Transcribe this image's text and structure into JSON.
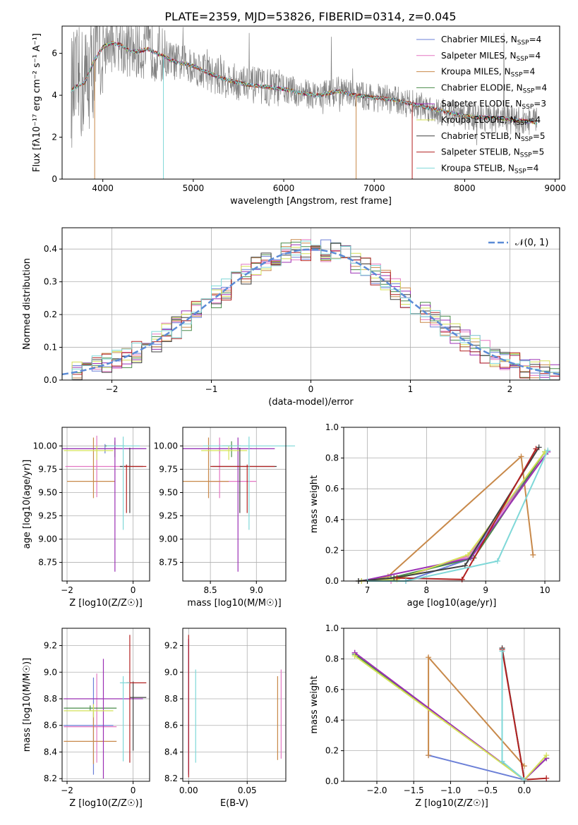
{
  "figure": {
    "title": "PLATE=2359, MJD=53826, FIBERID=0314, z=0.045"
  },
  "colors": {
    "Chabrier MILES": "#6b7fd7",
    "Salpeter MILES": "#e377c2",
    "Kroupa MILES": "#c8894a",
    "Chabrier ELODIE": "#4a8c4a",
    "Salpeter ELODIE": "#9b30b5",
    "Kroupa ELODIE": "#d4e157",
    "Chabrier STELIB": "#404040",
    "Salpeter STELIB": "#b22222",
    "Kroupa STELIB": "#7fd8d8",
    "data": "#808080",
    "normal": "#5b8bd6"
  },
  "chart_data": [
    {
      "id": "spectrum",
      "type": "line",
      "title": "PLATE=2359, MJD=53826, FIBERID=0314, z=0.045",
      "xlabel": "wavelength [Angstrom, rest frame]",
      "ylabel": "Flux [fλ10⁻¹⁷ erg cm⁻² s⁻¹ A⁻¹]",
      "xlim": [
        3550,
        9050
      ],
      "ylim": [
        0,
        7.3
      ],
      "xticks": [
        4000,
        5000,
        6000,
        7000,
        8000,
        9000
      ],
      "yticks": [
        0,
        2,
        4,
        6
      ],
      "legend_position": "top-right",
      "legend": [
        {
          "name": "Chabrier MILES",
          "suffix": "=4"
        },
        {
          "name": "Salpeter MILES",
          "suffix": "=4"
        },
        {
          "name": "Kroupa MILES",
          "suffix": "=4"
        },
        {
          "name": "Chabrier ELODIE",
          "suffix": "=4"
        },
        {
          "name": "Salpeter ELODIE",
          "suffix": "=3"
        },
        {
          "name": "Kroupa ELODIE",
          "suffix": "=4"
        },
        {
          "name": "Chabrier STELIB",
          "suffix": "=5"
        },
        {
          "name": "Salpeter STELIB",
          "suffix": "=5"
        },
        {
          "name": "Kroupa STELIB",
          "suffix": "=4"
        }
      ],
      "model_continuum": {
        "x": [
          3650,
          3700,
          3800,
          3900,
          4000,
          4100,
          4200,
          4300,
          4400,
          4500,
          4600,
          4700,
          4800,
          4900,
          5000,
          5200,
          5400,
          5600,
          5800,
          6000,
          6200,
          6400,
          6600,
          6800,
          7000,
          7200,
          7400,
          7600,
          7800,
          8000,
          8200,
          8400,
          8600,
          8800
        ],
        "y": [
          4.2,
          4.4,
          4.6,
          5.6,
          6.3,
          6.5,
          6.4,
          6.1,
          6.1,
          6.2,
          6.0,
          5.8,
          5.6,
          5.5,
          5.4,
          5.0,
          4.7,
          4.5,
          4.4,
          4.3,
          4.1,
          4.0,
          4.2,
          4.0,
          3.9,
          3.8,
          3.6,
          3.4,
          3.2,
          3.0,
          2.95,
          2.9,
          2.8,
          2.7
        ]
      }
    },
    {
      "id": "residuals",
      "type": "line",
      "xlabel": "(data-model)/error",
      "ylabel": "Normed distribution",
      "xlim": [
        -2.5,
        2.5
      ],
      "ylim": [
        0,
        0.465
      ],
      "xticks": [
        -2,
        -1,
        0,
        1,
        2
      ],
      "yticks": [
        0.0,
        0.1,
        0.2,
        0.3,
        0.4
      ],
      "grid": true,
      "legend_position": "top-right",
      "legend": [
        "𝒩(0, 1)"
      ],
      "normal_curve": {
        "mean": 0,
        "sd": 1
      }
    },
    {
      "id": "age_vs_Z",
      "type": "scatter",
      "xlabel": "Z [log10(Z/Z☉)]",
      "ylabel": "age  [log10(age/yr)]",
      "xlim": [
        -2.15,
        0.5
      ],
      "ylim": [
        8.55,
        10.2
      ],
      "xticks": [
        -2,
        0
      ],
      "yticks": [
        8.75,
        9.0,
        9.25,
        9.5,
        9.75,
        10.0
      ],
      "grid": true,
      "errorbars": [
        {
          "series": "Chabrier MILES",
          "x": -0.85,
          "xerr": [
            1.25,
            1.25
          ],
          "y": 9.97,
          "yerr": [
            0.05,
            0.05
          ]
        },
        {
          "series": "Salpeter MILES",
          "x": -1.1,
          "xerr": [
            0.95,
            0.95
          ],
          "y": 9.78,
          "yerr": [
            0.33,
            0.33
          ]
        },
        {
          "series": "Kroupa MILES",
          "x": -1.2,
          "xerr": [
            0.8,
            0.65
          ],
          "y": 9.62,
          "yerr": [
            0.18,
            0.47
          ]
        },
        {
          "series": "Chabrier ELODIE",
          "x": -0.55,
          "xerr": [
            0.3,
            0.3
          ],
          "y": 10.0,
          "yerr": [
            0.12,
            0.05
          ]
        },
        {
          "series": "Salpeter ELODIE",
          "x": -0.55,
          "xerr": [
            1.6,
            0.95
          ],
          "y": 9.97,
          "yerr": [
            1.32,
            0.12
          ]
        },
        {
          "series": "Kroupa ELODIE",
          "x": -1.1,
          "xerr": [
            1.0,
            0.5
          ],
          "y": 9.95,
          "yerr": [
            0.1,
            0.05
          ]
        },
        {
          "series": "Chabrier STELIB",
          "x": -0.1,
          "xerr": [
            0.3,
            0.4
          ],
          "y": 9.78,
          "yerr": [
            0.5,
            0.2
          ]
        },
        {
          "series": "Salpeter STELIB",
          "x": -0.2,
          "xerr": [
            0.1,
            0.6
          ],
          "y": 9.78,
          "yerr": [
            0.5,
            0.02
          ]
        },
        {
          "series": "Kroupa STELIB",
          "x": -0.3,
          "xerr": [
            0.5,
            0.5
          ],
          "y": 10.0,
          "yerr": [
            0.9,
            0.1
          ]
        }
      ]
    },
    {
      "id": "age_vs_mass",
      "type": "scatter",
      "xlabel": "mass [log10(M/M☉)]",
      "ylabel": "",
      "xlim": [
        8.2,
        9.32
      ],
      "ylim": [
        8.55,
        10.2
      ],
      "xticks": [
        8.5,
        9.0
      ],
      "yticks": [
        8.75,
        9.0,
        9.25,
        9.5,
        9.75,
        10.0
      ],
      "grid": true,
      "errorbars": [
        {
          "series": "Chabrier MILES",
          "x": 8.6,
          "xerr": [
            0.4,
            0.35
          ],
          "y": 9.97,
          "yerr": [
            0.05,
            0.05
          ]
        },
        {
          "series": "Salpeter MILES",
          "x": 8.6,
          "xerr": [
            0.1,
            0.4
          ],
          "y": 9.62,
          "yerr": [
            0.18,
            0.47
          ]
        },
        {
          "series": "Kroupa MILES",
          "x": 8.48,
          "xerr": [
            0.28,
            0.22
          ],
          "y": 9.62,
          "yerr": [
            0.18,
            0.47
          ]
        },
        {
          "series": "Chabrier ELODIE",
          "x": 8.73,
          "xerr": [
            0.1,
            0.1
          ],
          "y": 10.0,
          "yerr": [
            0.12,
            0.05
          ]
        },
        {
          "series": "Salpeter ELODIE",
          "x": 8.8,
          "xerr": [
            0.6,
            0.4
          ],
          "y": 9.97,
          "yerr": [
            1.32,
            0.12
          ]
        },
        {
          "series": "Kroupa ELODIE",
          "x": 8.7,
          "xerr": [
            0.3,
            0.2
          ],
          "y": 9.95,
          "yerr": [
            0.1,
            0.05
          ]
        },
        {
          "series": "Chabrier STELIB",
          "x": 8.82,
          "xerr": [
            0.3,
            0.4
          ],
          "y": 9.78,
          "yerr": [
            0.5,
            0.2
          ]
        },
        {
          "series": "Salpeter STELIB",
          "x": 8.9,
          "xerr": [
            0.4,
            0.3
          ],
          "y": 9.78,
          "yerr": [
            0.5,
            0.02
          ]
        },
        {
          "series": "Kroupa STELIB",
          "x": 8.92,
          "xerr": [
            0.5,
            0.5
          ],
          "y": 10.0,
          "yerr": [
            0.9,
            0.1
          ]
        }
      ]
    },
    {
      "id": "weight_vs_age",
      "type": "line",
      "xlabel": "age  [log10(age/yr)]",
      "ylabel": "mass weight",
      "xlim": [
        6.6,
        10.25
      ],
      "ylim": [
        0,
        1.0
      ],
      "xticks": [
        7,
        8,
        9,
        10
      ],
      "yticks": [
        0.0,
        0.2,
        0.4,
        0.6,
        0.8,
        1.0
      ],
      "grid": true,
      "series": [
        {
          "name": "Chabrier MILES",
          "x": [
            6.9,
            7.65,
            8.7,
            10.0
          ],
          "y": [
            0.0,
            0.0,
            0.14,
            0.84
          ]
        },
        {
          "name": "Salpeter MILES",
          "x": [
            6.85,
            7.4,
            8.7,
            10.05
          ],
          "y": [
            0.0,
            0.0,
            0.16,
            0.84
          ]
        },
        {
          "name": "Kroupa MILES",
          "x": [
            6.9,
            7.35,
            9.6,
            9.8
          ],
          "y": [
            0.0,
            0.03,
            0.81,
            0.17
          ]
        },
        {
          "name": "Chabrier ELODIE",
          "x": [
            6.85,
            7.4,
            8.8,
            10.0
          ],
          "y": [
            0.0,
            0.02,
            0.15,
            0.84
          ]
        },
        {
          "name": "Salpeter ELODIE",
          "x": [
            6.9,
            8.75,
            10.05
          ],
          "y": [
            0.0,
            0.15,
            0.84
          ]
        },
        {
          "name": "Kroupa ELODIE",
          "x": [
            6.9,
            7.5,
            8.7,
            10.0
          ],
          "y": [
            0.0,
            0.01,
            0.17,
            0.84
          ]
        },
        {
          "name": "Chabrier STELIB",
          "x": [
            6.85,
            7.45,
            8.65,
            9.9
          ],
          "y": [
            0.0,
            0.02,
            0.1,
            0.87
          ]
        },
        {
          "name": "Salpeter STELIB",
          "x": [
            7.5,
            8.6,
            9.85
          ],
          "y": [
            0.02,
            0.01,
            0.86
          ]
        },
        {
          "name": "Kroupa STELIB",
          "x": [
            7.0,
            7.65,
            9.2,
            10.05
          ],
          "y": [
            0.0,
            0.0,
            0.13,
            0.85
          ]
        }
      ]
    },
    {
      "id": "mass_vs_Z",
      "type": "scatter",
      "xlabel": "Z [log10(Z/Z☉)]",
      "ylabel": "mass [log10(M/M☉)]",
      "xlim": [
        -2.15,
        0.5
      ],
      "ylim": [
        8.18,
        9.33
      ],
      "xticks": [
        -2,
        0
      ],
      "yticks": [
        8.2,
        8.4,
        8.6,
        8.8,
        9.0,
        9.2
      ],
      "grid": true,
      "errorbars": [
        {
          "series": "Chabrier MILES",
          "x": -1.2,
          "xerr": [
            0.9,
            0.6
          ],
          "y": 8.6,
          "yerr": [
            0.37,
            0.36
          ]
        },
        {
          "series": "Salpeter MILES",
          "x": -1.1,
          "xerr": [
            1.0,
            0.6
          ],
          "y": 8.59,
          "yerr": [
            0.27,
            0.4
          ]
        },
        {
          "series": "Kroupa MILES",
          "x": -1.2,
          "xerr": [
            0.9,
            0.7
          ],
          "y": 8.48,
          "yerr": [
            0.17,
            0.22
          ]
        },
        {
          "series": "Chabrier ELODIE",
          "x": -1.3,
          "xerr": [
            0.8,
            0.8
          ],
          "y": 8.73,
          "yerr": [
            0.02,
            0.02
          ]
        },
        {
          "series": "Salpeter ELODIE",
          "x": -0.9,
          "xerr": [
            1.2,
            1.2
          ],
          "y": 8.8,
          "yerr": [
            0.6,
            0.3
          ]
        },
        {
          "series": "Kroupa ELODIE",
          "x": -1.2,
          "xerr": [
            0.9,
            0.6
          ],
          "y": 8.71,
          "yerr": [
            0.05,
            0.05
          ]
        },
        {
          "series": "Chabrier STELIB",
          "x": 0.0,
          "xerr": [
            0.1,
            0.4
          ],
          "y": 8.81,
          "yerr": [
            0.4,
            0.12
          ]
        },
        {
          "series": "Salpeter STELIB",
          "x": -0.1,
          "xerr": [
            0.1,
            0.5
          ],
          "y": 8.92,
          "yerr": [
            0.6,
            0.36
          ]
        },
        {
          "series": "Kroupa STELIB",
          "x": -0.3,
          "xerr": [
            0.1,
            0.2
          ],
          "y": 8.92,
          "yerr": [
            0.59,
            0.05
          ]
        }
      ]
    },
    {
      "id": "mass_vs_ebv",
      "type": "scatter",
      "xlabel": "E(B-V)",
      "ylabel": "",
      "xlim": [
        -0.005,
        0.083
      ],
      "ylim": [
        8.18,
        9.33
      ],
      "xticks": [
        0.0,
        0.05
      ],
      "yticks": [
        8.2,
        8.4,
        8.6,
        8.8,
        9.0,
        9.2
      ],
      "grid": true,
      "errorbars": [
        {
          "series": "Chabrier MILES",
          "x": 0.0,
          "y": 8.75,
          "yerr": [
            0.5,
            0.5
          ]
        },
        {
          "series": "Salpeter ELODIE",
          "x": 0.0,
          "y": 8.75,
          "yerr": [
            0.52,
            0.5
          ]
        },
        {
          "series": "Salpeter STELIB",
          "x": 0.0,
          "y": 8.75,
          "yerr": [
            0.54,
            0.53
          ]
        },
        {
          "series": "Kroupa STELIB",
          "x": 0.006,
          "y": 8.6,
          "yerr": [
            0.28,
            0.42
          ]
        },
        {
          "series": "Salpeter MILES",
          "x": 0.079,
          "y": 8.6,
          "yerr": [
            0.25,
            0.42
          ]
        },
        {
          "series": "Kroupa MILES",
          "x": 0.076,
          "y": 8.6,
          "yerr": [
            0.26,
            0.37
          ]
        }
      ]
    },
    {
      "id": "weight_vs_Z",
      "type": "line",
      "xlabel": "Z [log10(Z/Z☉)]",
      "ylabel": "mass weight",
      "xlim": [
        -2.45,
        0.48
      ],
      "ylim": [
        0,
        1.0
      ],
      "xticks": [
        -2.0,
        -1.5,
        -1.0,
        -0.5,
        0.0
      ],
      "yticks": [
        0.0,
        0.2,
        0.4,
        0.6,
        0.8,
        1.0
      ],
      "grid": true,
      "series": [
        {
          "name": "Chabrier MILES",
          "x": [
            -1.3,
            0.0
          ],
          "y": [
            0.17,
            0.01
          ]
        },
        {
          "name": "Salpeter MILES",
          "x": [
            -2.3,
            0.0
          ],
          "y": [
            0.84,
            0.01
          ]
        },
        {
          "name": "Kroupa MILES",
          "x": [
            -1.3,
            -1.3,
            0.0
          ],
          "y": [
            0.17,
            0.81,
            0.1
          ]
        },
        {
          "name": "Chabrier ELODIE",
          "x": [
            -2.3,
            0.0,
            0.3
          ],
          "y": [
            0.83,
            0.01,
            0.15
          ]
        },
        {
          "name": "Salpeter ELODIE",
          "x": [
            -2.3,
            0.0,
            0.3
          ],
          "y": [
            0.84,
            0.01,
            0.15
          ]
        },
        {
          "name": "Kroupa ELODIE",
          "x": [
            -2.3,
            0.0,
            0.3
          ],
          "y": [
            0.82,
            0.01,
            0.17
          ]
        },
        {
          "name": "Chabrier STELIB",
          "x": [
            -0.3,
            0.0
          ],
          "y": [
            0.87,
            0.01
          ]
        },
        {
          "name": "Salpeter STELIB",
          "x": [
            -0.3,
            0.0,
            0.3
          ],
          "y": [
            0.86,
            0.01,
            0.02
          ]
        },
        {
          "name": "Kroupa STELIB",
          "x": [
            -0.3,
            -0.3,
            0.0
          ],
          "y": [
            0.85,
            0.13,
            0.01
          ]
        }
      ]
    }
  ]
}
